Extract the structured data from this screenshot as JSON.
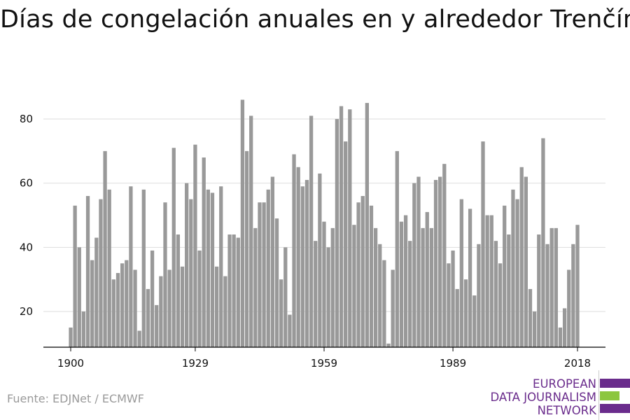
{
  "header": {
    "title": "Días de congelación anuales en y alrededor Trenčín"
  },
  "footer": {
    "source": "Fuente: EDJNet / ECMWF"
  },
  "logo": {
    "line1": "EUROPEAN",
    "line2": "DATA JOURNALISM",
    "line3": "NETWORK",
    "colors": [
      "#6a2c8c",
      "#8cc63f",
      "#6a2c8c"
    ]
  },
  "colors": {
    "bar": "#999999",
    "grid": "#dddddd",
    "axis": "#000000",
    "text": "#111111"
  },
  "chart_data": {
    "type": "bar",
    "title": "Días de congelación anuales en y alrededor Trenčín",
    "x_start": 1900,
    "x_end": 2018,
    "xticks": [
      1900,
      1929,
      1959,
      1989,
      2018
    ],
    "yticks": [
      20,
      40,
      60,
      80
    ],
    "ylim": [
      9,
      88
    ],
    "grid": true,
    "values": [
      15,
      53,
      40,
      20,
      56,
      36,
      43,
      55,
      70,
      58,
      30,
      32,
      35,
      36,
      59,
      33,
      14,
      58,
      27,
      39,
      22,
      31,
      54,
      33,
      71,
      44,
      34,
      60,
      55,
      72,
      39,
      68,
      58,
      57,
      34,
      59,
      31,
      44,
      44,
      43,
      86,
      70,
      81,
      46,
      54,
      54,
      58,
      62,
      49,
      30,
      40,
      19,
      69,
      65,
      59,
      61,
      81,
      42,
      63,
      48,
      40,
      46,
      80,
      84,
      73,
      83,
      47,
      54,
      56,
      85,
      53,
      46,
      41,
      36,
      10,
      33,
      70,
      48,
      50,
      42,
      60,
      62,
      46,
      51,
      46,
      61,
      62,
      66,
      35,
      39,
      27,
      55,
      30,
      52,
      25,
      41,
      73,
      50,
      50,
      42,
      35,
      53,
      44,
      58,
      55,
      65,
      62,
      27,
      20,
      44,
      74,
      41,
      46,
      46,
      15,
      21,
      33,
      41,
      47
    ]
  }
}
